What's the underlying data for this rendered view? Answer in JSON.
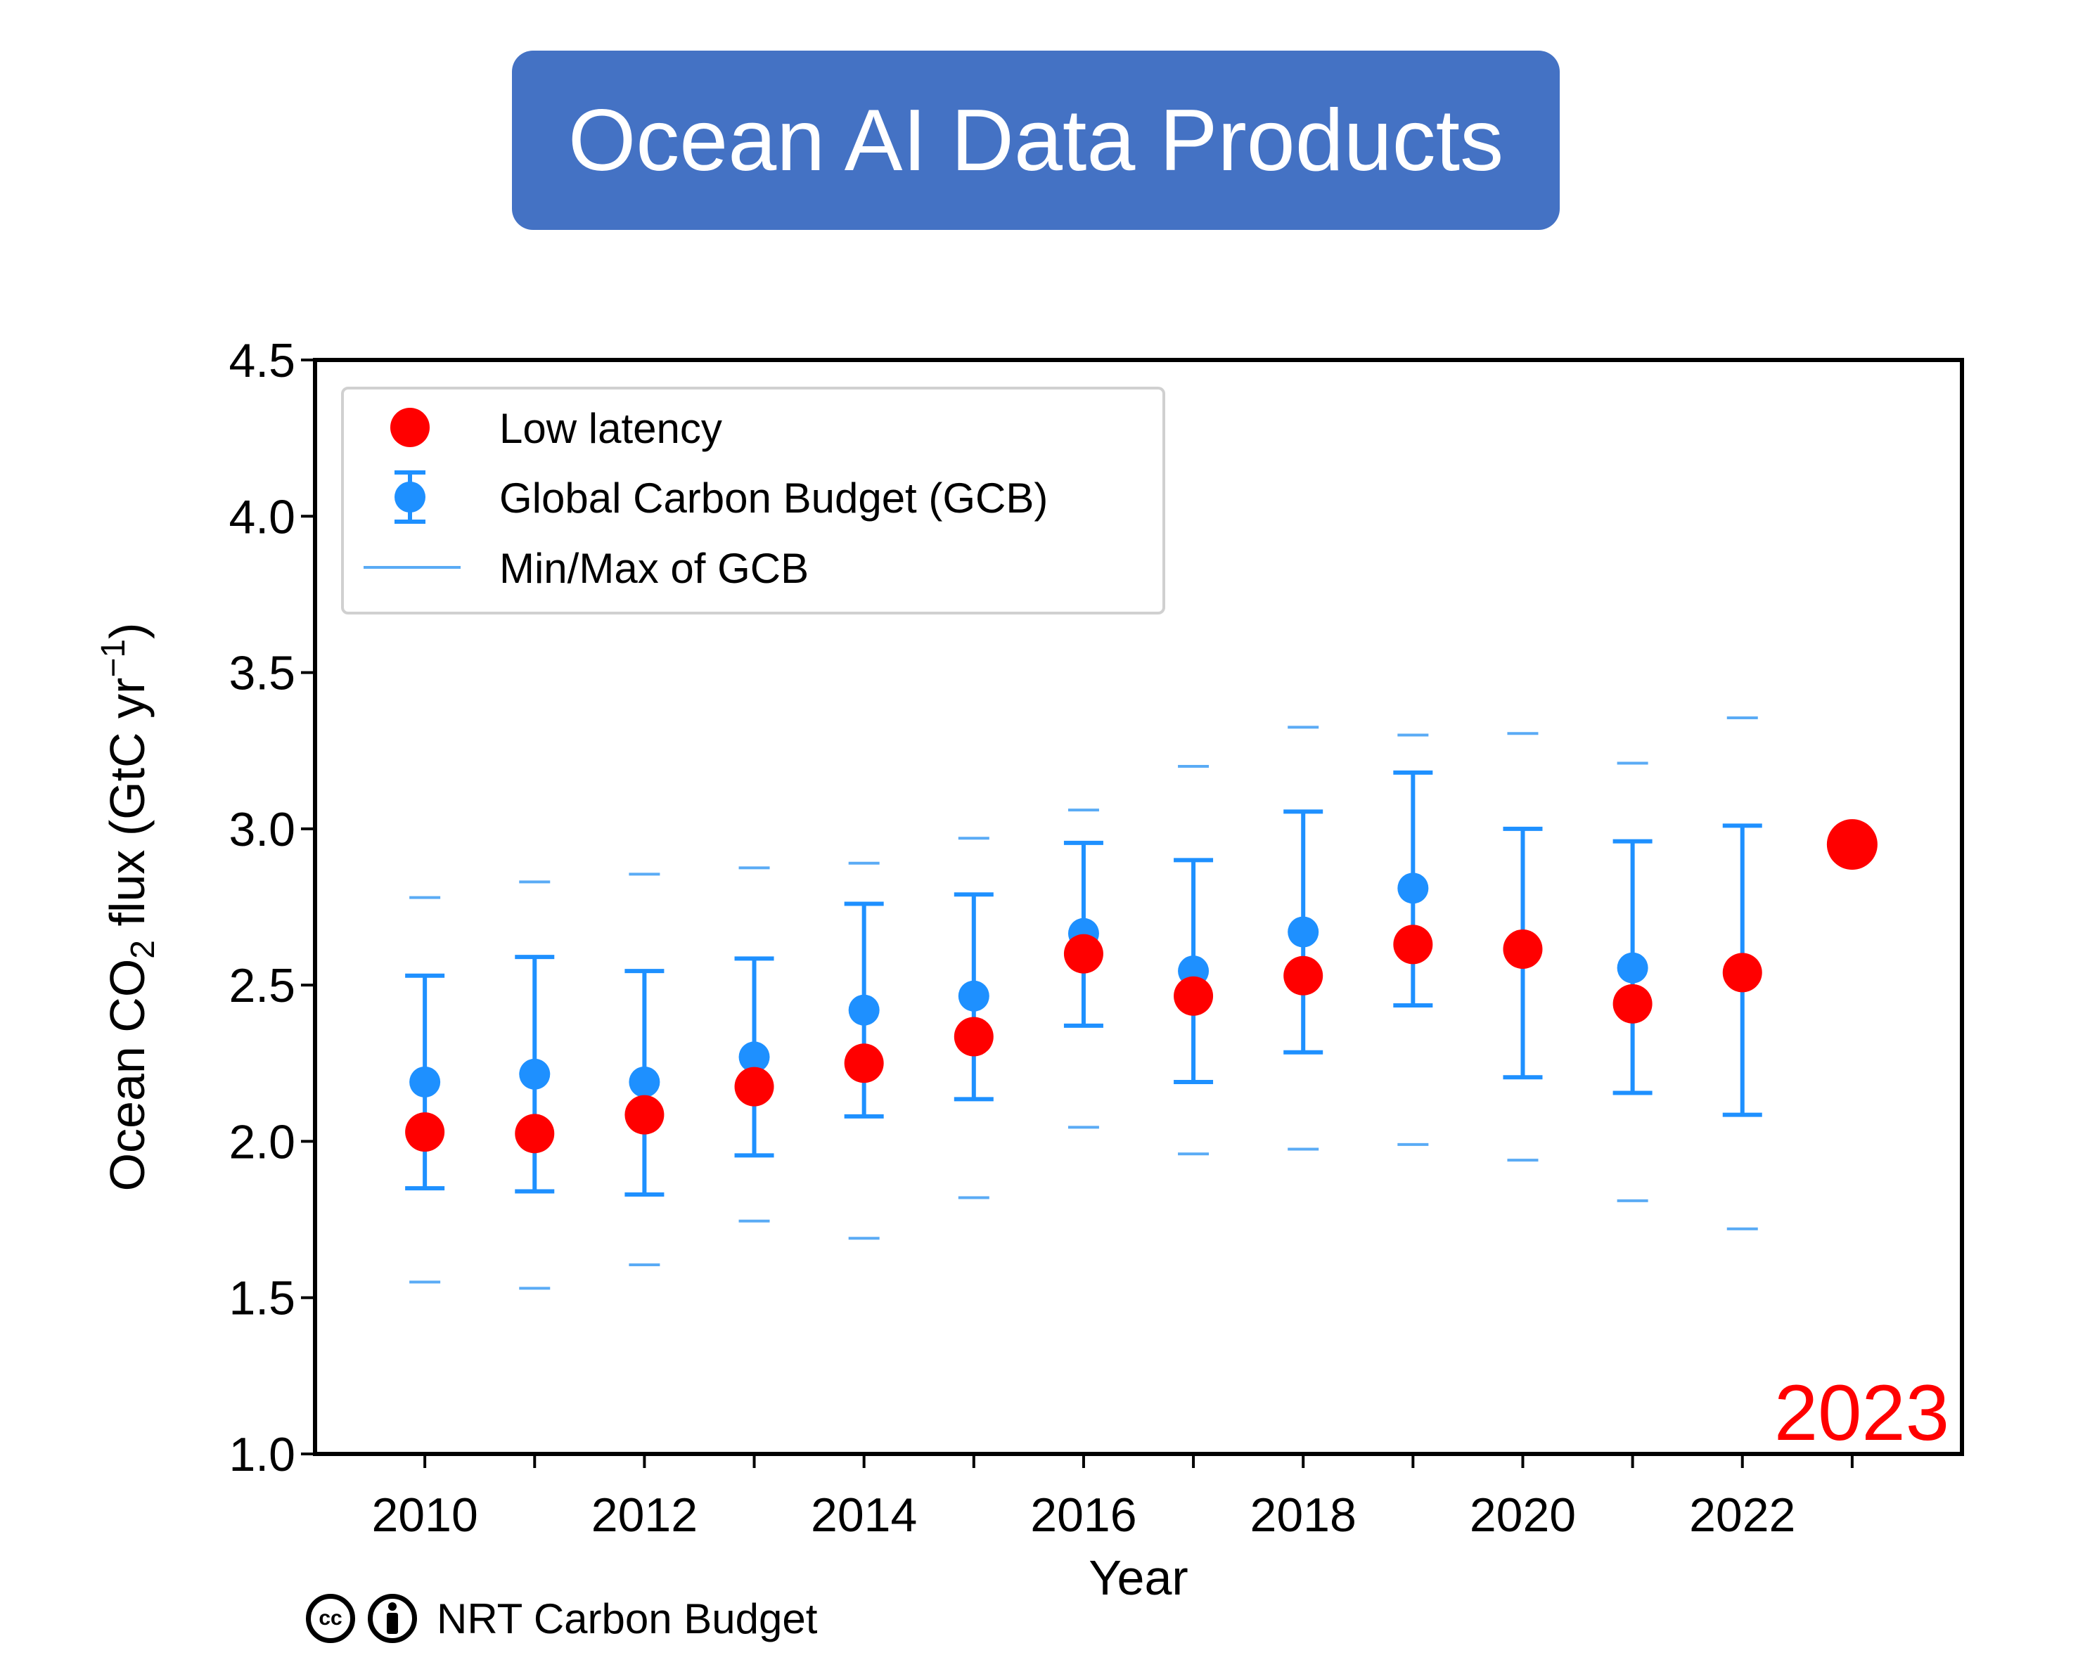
{
  "banner": {
    "title": "Ocean AI Data Products"
  },
  "credit": {
    "text": "NRT Carbon Budget",
    "cc_icon": "cc-icon",
    "by_icon": "attribution-icon"
  },
  "colors": {
    "banner": "#4472c4",
    "gcb": "#1e90ff",
    "minmax": "#5aabf5",
    "low_latency": "#ff0000"
  },
  "chart_data": {
    "type": "scatter",
    "xlabel": "Year",
    "ylabel_parts": [
      "Ocean CO",
      "2",
      " flux (GtC yr",
      "−1",
      ")"
    ],
    "xlim": [
      2009.0,
      2024.0
    ],
    "ylim": [
      1.0,
      4.5
    ],
    "xticks": [
      2010,
      2012,
      2014,
      2016,
      2018,
      2020,
      2022
    ],
    "xticks_minor": [
      2010,
      2011,
      2012,
      2013,
      2014,
      2015,
      2016,
      2017,
      2018,
      2019,
      2020,
      2021,
      2022,
      2023
    ],
    "yticks": [
      1.0,
      1.5,
      2.0,
      2.5,
      3.0,
      3.5,
      4.0,
      4.5
    ],
    "legend": {
      "position": "top-left",
      "entries": [
        "Low latency",
        "Global Carbon Budget (GCB)",
        "Min/Max of GCB"
      ]
    },
    "annotation": "2023",
    "series": [
      {
        "name": "Global Carbon Budget (GCB)",
        "x": [
          2010,
          2011,
          2012,
          2013,
          2014,
          2015,
          2016,
          2017,
          2018,
          2019,
          2020,
          2021,
          2022
        ],
        "y": [
          2.19,
          2.215,
          2.19,
          2.27,
          2.42,
          2.465,
          2.665,
          2.545,
          2.67,
          2.81,
          2.61,
          2.555,
          2.55
        ],
        "y_low": [
          1.85,
          1.84,
          1.83,
          1.955,
          2.08,
          2.135,
          2.37,
          2.19,
          2.285,
          2.435,
          2.205,
          2.155,
          2.085
        ],
        "y_high": [
          2.53,
          2.59,
          2.545,
          2.585,
          2.76,
          2.79,
          2.955,
          2.9,
          3.055,
          3.18,
          3.0,
          2.96,
          3.01
        ],
        "min": [
          1.55,
          1.53,
          1.605,
          1.745,
          1.69,
          1.82,
          2.045,
          1.96,
          1.975,
          1.99,
          1.94,
          1.81,
          1.72
        ],
        "max": [
          2.78,
          2.83,
          2.855,
          2.875,
          2.89,
          2.97,
          3.06,
          3.2,
          3.325,
          3.3,
          3.305,
          3.21,
          3.355
        ]
      },
      {
        "name": "Low latency",
        "x": [
          2010,
          2011,
          2012,
          2013,
          2014,
          2015,
          2016,
          2017,
          2018,
          2019,
          2020,
          2021,
          2022,
          2023
        ],
        "y": [
          2.03,
          2.025,
          2.085,
          2.175,
          2.25,
          2.335,
          2.6,
          2.465,
          2.53,
          2.63,
          2.615,
          2.44,
          2.54,
          2.95
        ]
      }
    ]
  }
}
